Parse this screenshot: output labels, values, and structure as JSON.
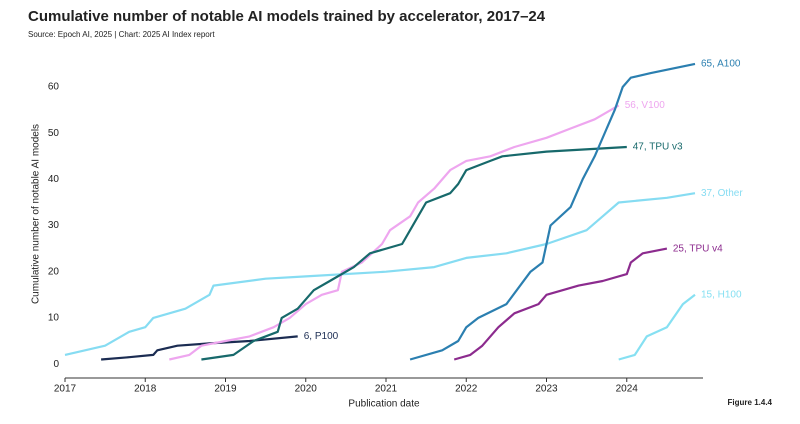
{
  "chart_data": {
    "type": "line",
    "title": "Cumulative number of notable AI models trained by accelerator, 2017–24",
    "subtitle": "Source: Epoch AI, 2025 | Chart: 2025 AI Index report",
    "xlabel": "Publication date",
    "ylabel": "Cumulative number of notable AI models",
    "figure_label": "Figure 1.4.4",
    "xlim": [
      2017,
      2024.95
    ],
    "ylim": [
      -3,
      68
    ],
    "xticks": [
      2017,
      2018,
      2019,
      2020,
      2021,
      2022,
      2023,
      2024
    ],
    "yticks": [
      0,
      10,
      20,
      30,
      40,
      50,
      60
    ],
    "grid": false,
    "series": [
      {
        "label": "37, Other",
        "color": "#86dcf2",
        "x": [
          2017.0,
          2017.5,
          2017.8,
          2018.0,
          2018.1,
          2018.5,
          2018.8,
          2018.85,
          2019.5,
          2020.0,
          2021.0,
          2021.6,
          2022.0,
          2022.5,
          2023.0,
          2023.5,
          2023.7,
          2023.9,
          2024.5,
          2024.85
        ],
        "values": [
          2,
          4,
          7,
          8,
          10,
          12,
          15,
          17,
          18.5,
          19,
          20,
          21,
          23,
          24,
          26,
          29,
          32,
          35,
          36,
          37
        ]
      },
      {
        "label": "6, P100",
        "color": "#1b2c52",
        "x": [
          2017.45,
          2017.8,
          2018.1,
          2018.15,
          2018.4,
          2018.8,
          2019.3,
          2019.9
        ],
        "values": [
          1,
          1.5,
          2,
          3,
          4,
          4.5,
          5,
          6
        ]
      },
      {
        "label": "56, V100",
        "color": "#eea6ef",
        "x": [
          2018.3,
          2018.55,
          2018.7,
          2019.0,
          2019.3,
          2019.6,
          2019.8,
          2020.0,
          2020.2,
          2020.4,
          2020.45,
          2020.7,
          2020.95,
          2021.05,
          2021.3,
          2021.4,
          2021.6,
          2021.8,
          2022.0,
          2022.3,
          2022.6,
          2023.0,
          2023.3,
          2023.6,
          2023.9
        ],
        "values": [
          1,
          2,
          4,
          5,
          6,
          8,
          10,
          13,
          15,
          16,
          20,
          22,
          26,
          29,
          32,
          35,
          38,
          42,
          44,
          45,
          47,
          49,
          51,
          53,
          56
        ]
      },
      {
        "label": "47, TPU v3",
        "color": "#17696b",
        "x": [
          2018.7,
          2019.1,
          2019.35,
          2019.65,
          2019.7,
          2019.9,
          2020.1,
          2020.3,
          2020.6,
          2020.8,
          2021.2,
          2021.4,
          2021.5,
          2021.8,
          2021.9,
          2022.0,
          2022.3,
          2022.45,
          2023.0,
          2024.0
        ],
        "values": [
          1,
          2,
          5,
          7,
          10,
          12,
          16,
          18,
          21,
          24,
          26,
          32,
          35,
          37,
          39,
          42,
          44,
          45,
          46,
          47
        ]
      },
      {
        "label": "65, A100",
        "color": "#2b7fb0",
        "x": [
          2021.3,
          2021.7,
          2021.9,
          2022.0,
          2022.15,
          2022.5,
          2022.8,
          2022.95,
          2023.05,
          2023.3,
          2023.45,
          2023.6,
          2023.75,
          2023.85,
          2023.95,
          2024.05,
          2024.3,
          2024.85
        ],
        "values": [
          1,
          3,
          5,
          8,
          10,
          13,
          20,
          22,
          30,
          34,
          40,
          45,
          51,
          55,
          60,
          62,
          63,
          65
        ]
      },
      {
        "label": "25, TPU v4",
        "color": "#8c2b8e",
        "x": [
          2021.85,
          2022.05,
          2022.2,
          2022.4,
          2022.6,
          2022.9,
          2023.0,
          2023.2,
          2023.4,
          2023.7,
          2024.0,
          2024.05,
          2024.2,
          2024.5
        ],
        "values": [
          1,
          2,
          4,
          8,
          11,
          13,
          15,
          16,
          17,
          18,
          19.5,
          22,
          24,
          25
        ]
      },
      {
        "label": "15, H100",
        "color": "#86e0f2",
        "x": [
          2023.9,
          2024.1,
          2024.25,
          2024.5,
          2024.7,
          2024.85
        ],
        "values": [
          1,
          2,
          6,
          8,
          13,
          15
        ]
      }
    ]
  }
}
